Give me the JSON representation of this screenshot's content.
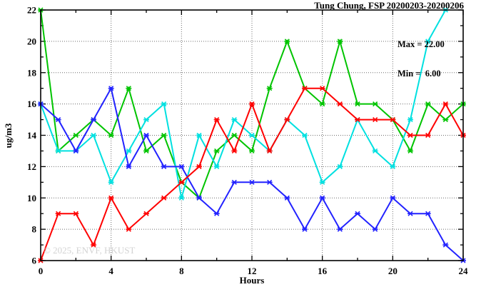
{
  "header": {
    "title": "Tung Chung, FSP 20200203-20200206"
  },
  "annotations": {
    "max_label": "Max = 22.00",
    "min_label": "Min =  6.00"
  },
  "watermark": "© 2025, ENVF, HKUST",
  "chart_data": {
    "type": "line",
    "title": "Tung Chung, FSP 20200203-20200206",
    "xlabel": "Hours",
    "ylabel": "ug/m3",
    "xlim": [
      0,
      24
    ],
    "ylim": [
      6,
      22
    ],
    "xticks": [
      0,
      4,
      8,
      12,
      16,
      20,
      24
    ],
    "yticks": [
      6,
      8,
      10,
      12,
      14,
      16,
      18,
      20,
      22
    ],
    "x_minor_step": 2,
    "y_minor_step": 1,
    "grid": true,
    "legend": "none",
    "max": 22.0,
    "min": 6.0,
    "x": [
      0,
      1,
      2,
      3,
      4,
      5,
      6,
      7,
      8,
      9,
      10,
      11,
      12,
      13,
      14,
      15,
      16,
      17,
      18,
      19,
      20,
      21,
      22,
      23,
      24
    ],
    "series": [
      {
        "name": "green",
        "color": "#00c400",
        "values": [
          22,
          13,
          14,
          15,
          14,
          17,
          13,
          14,
          11,
          10,
          13,
          14,
          13,
          17,
          20,
          17,
          16,
          20,
          16,
          16,
          15,
          13,
          16,
          15,
          16
        ]
      },
      {
        "name": "cyan",
        "color": "#00e0e0",
        "values": [
          16,
          13,
          13,
          14,
          11,
          13,
          15,
          16,
          10,
          14,
          12,
          15,
          14,
          13,
          15,
          14,
          11,
          12,
          15,
          13,
          12,
          15,
          20,
          22,
          null
        ]
      },
      {
        "name": "blue",
        "color": "#2222ff",
        "values": [
          16,
          15,
          13,
          15,
          17,
          12,
          14,
          12,
          12,
          10,
          9,
          11,
          11,
          11,
          10,
          8,
          10,
          8,
          9,
          8,
          10,
          9,
          9,
          7,
          6
        ]
      },
      {
        "name": "red",
        "color": "#ff0000",
        "values": [
          6,
          9,
          9,
          7,
          10,
          8,
          9,
          10,
          11,
          12,
          15,
          13,
          16,
          13,
          15,
          17,
          17,
          16,
          15,
          15,
          15,
          14,
          14,
          16,
          14
        ]
      }
    ]
  }
}
